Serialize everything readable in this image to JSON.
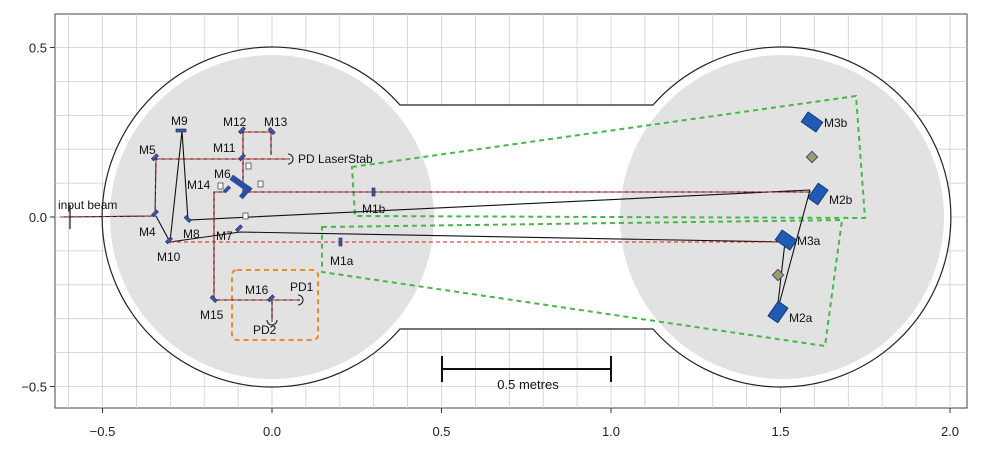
{
  "colors": {
    "background": "#ffffff",
    "chamber_fill": "#e2e2e2",
    "chamber_outline": "#222222",
    "grid": "#cfcfcf",
    "beam_black": "#111111",
    "beam_red": "#d62020",
    "cavity_box": "#47b847",
    "pd_box": "#f08c1e",
    "mirror_small": "#3b5aa8",
    "mirror_large": "#1f5bb5",
    "splitter": "#88a86a"
  },
  "axes": {
    "x_ticks": [
      "−0.5",
      "0.0",
      "0.5",
      "1.0",
      "1.5",
      "2.0"
    ],
    "y_ticks": [
      "0.5",
      "0.0",
      "−0.5"
    ],
    "x_range": [
      -0.65,
      2.1
    ],
    "y_range": [
      -0.62,
      0.62
    ],
    "grid": true
  },
  "labels": {
    "input_beam": "input beam",
    "pd_laserstab": "PD LaserStab",
    "scale_bar": "0.5 metres",
    "mirrors": {
      "M1a": "M1a",
      "M1b": "M1b",
      "M2a": "M2a",
      "M2b": "M2b",
      "M3a": "M3a",
      "M3b": "M3b",
      "M4": "M4",
      "M5": "M5",
      "M6": "M6",
      "M7": "M7",
      "M8": "M8",
      "M9": "M9",
      "M10": "M10",
      "M11": "M11",
      "M12": "M12",
      "M13": "M13",
      "M14": "M14",
      "M15": "M15",
      "M16": "M16",
      "PD1": "PD1",
      "PD2": "PD2"
    }
  }
}
